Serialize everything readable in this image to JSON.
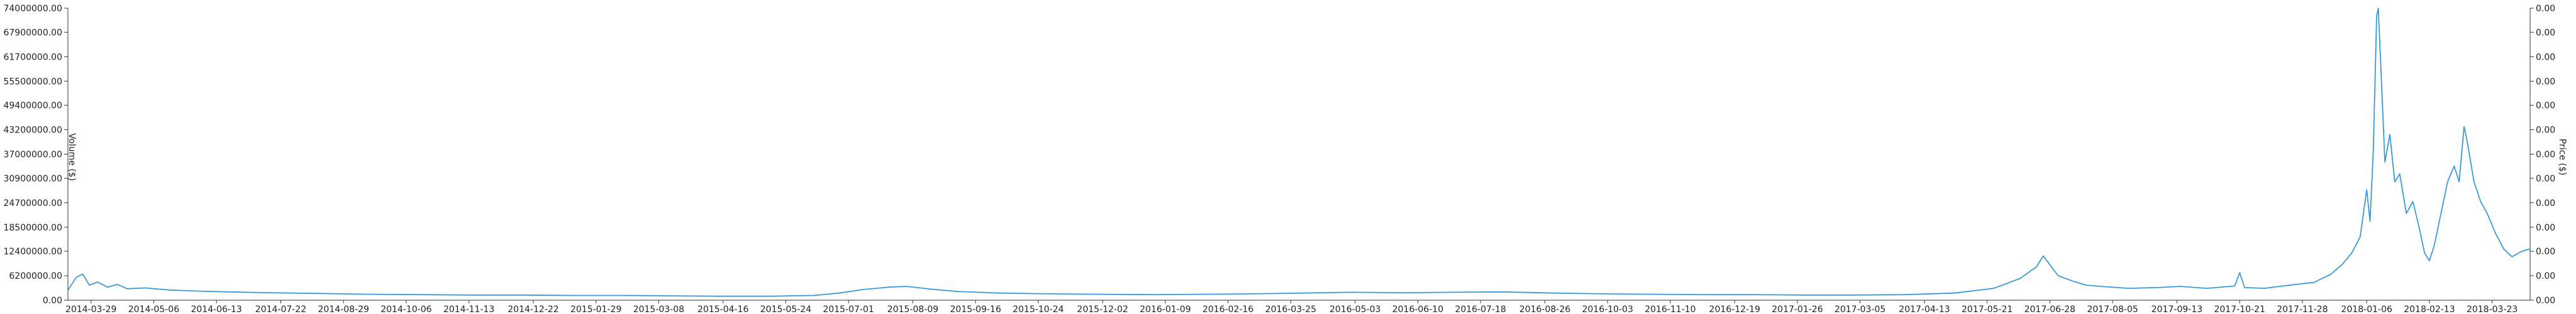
{
  "chart_data": {
    "type": "line",
    "title": "",
    "ylabel_left": "Volume ($)",
    "ylabel_right": "Price ($)",
    "y_left": {
      "min": 0,
      "max": 74000000,
      "ticks": [
        "0.00",
        "6200000.00",
        "12400000.00",
        "18500000.00",
        "24700000.00",
        "30900000.00",
        "37000000.00",
        "43200000.00",
        "49400000.00",
        "55500000.00",
        "61700000.00",
        "67900000.00",
        "74000000.00"
      ],
      "tick_values": [
        0,
        6200000,
        12400000,
        18500000,
        24700000,
        30900000,
        37000000,
        43200000,
        49400000,
        55500000,
        61700000,
        67900000,
        74000000
      ]
    },
    "y_right": {
      "ticks": [
        "0.00",
        "0.00",
        "0.00",
        "0.00",
        "0.00",
        "0.00",
        "0.00",
        "0.00",
        "0.00",
        "0.00",
        "0.00",
        "0.00",
        "0.00"
      ]
    },
    "x_axis": {
      "type": "date",
      "range": [
        "2014-03-15",
        "2018-04-15"
      ],
      "ticks": [
        "2014-03-29",
        "2014-05-06",
        "2014-06-13",
        "2014-07-22",
        "2014-08-29",
        "2014-10-06",
        "2014-11-13",
        "2014-12-22",
        "2015-01-29",
        "2015-03-08",
        "2015-04-16",
        "2015-05-24",
        "2015-07-01",
        "2015-08-09",
        "2015-09-16",
        "2015-10-24",
        "2015-12-02",
        "2016-01-09",
        "2016-02-16",
        "2016-03-25",
        "2016-05-03",
        "2016-06-10",
        "2016-07-18",
        "2016-08-26",
        "2016-10-03",
        "2016-11-10",
        "2016-12-19",
        "2017-01-26",
        "2017-03-05",
        "2017-04-13",
        "2017-05-21",
        "2017-06-28",
        "2017-08-05",
        "2017-09-13",
        "2017-10-21",
        "2017-11-28",
        "2018-01-06",
        "2018-02-13",
        "2018-03-23"
      ]
    },
    "grid": false,
    "legend": "none",
    "series": [
      {
        "color": "#3a9ad9",
        "axis": "left",
        "points": [
          [
            "2014-03-15",
            2500000
          ],
          [
            "2014-03-20",
            5800000
          ],
          [
            "2014-03-24",
            6600000
          ],
          [
            "2014-03-28",
            3800000
          ],
          [
            "2014-04-02",
            4600000
          ],
          [
            "2014-04-08",
            3300000
          ],
          [
            "2014-04-14",
            4000000
          ],
          [
            "2014-04-20",
            2900000
          ],
          [
            "2014-05-01",
            3100000
          ],
          [
            "2014-05-15",
            2600000
          ],
          [
            "2014-06-01",
            2300000
          ],
          [
            "2014-06-20",
            2100000
          ],
          [
            "2014-07-15",
            1900000
          ],
          [
            "2014-08-15",
            1700000
          ],
          [
            "2014-09-15",
            1500000
          ],
          [
            "2014-10-15",
            1400000
          ],
          [
            "2014-11-15",
            1300000
          ],
          [
            "2014-12-15",
            1300000
          ],
          [
            "2015-01-15",
            1200000
          ],
          [
            "2015-02-15",
            1200000
          ],
          [
            "2015-03-15",
            1100000
          ],
          [
            "2015-04-15",
            1000000
          ],
          [
            "2015-05-15",
            1000000
          ],
          [
            "2015-06-10",
            1200000
          ],
          [
            "2015-06-25",
            1800000
          ],
          [
            "2015-07-10",
            2700000
          ],
          [
            "2015-07-25",
            3300000
          ],
          [
            "2015-08-05",
            3500000
          ],
          [
            "2015-08-20",
            2800000
          ],
          [
            "2015-09-05",
            2200000
          ],
          [
            "2015-10-01",
            1800000
          ],
          [
            "2015-11-01",
            1600000
          ],
          [
            "2015-12-01",
            1500000
          ],
          [
            "2016-01-01",
            1400000
          ],
          [
            "2016-02-01",
            1500000
          ],
          [
            "2016-03-01",
            1600000
          ],
          [
            "2016-04-01",
            1800000
          ],
          [
            "2016-05-01",
            2000000
          ],
          [
            "2016-06-01",
            1900000
          ],
          [
            "2016-07-01",
            2000000
          ],
          [
            "2016-08-01",
            2100000
          ],
          [
            "2016-09-01",
            1800000
          ],
          [
            "2016-10-01",
            1600000
          ],
          [
            "2016-11-01",
            1500000
          ],
          [
            "2016-12-01",
            1400000
          ],
          [
            "2017-01-01",
            1400000
          ],
          [
            "2017-02-01",
            1300000
          ],
          [
            "2017-03-01",
            1300000
          ],
          [
            "2017-04-01",
            1400000
          ],
          [
            "2017-05-01",
            1800000
          ],
          [
            "2017-05-25",
            3000000
          ],
          [
            "2017-06-10",
            5500000
          ],
          [
            "2017-06-20",
            8500000
          ],
          [
            "2017-06-24",
            11200000
          ],
          [
            "2017-06-28",
            9000000
          ],
          [
            "2017-07-03",
            6200000
          ],
          [
            "2017-07-12",
            4800000
          ],
          [
            "2017-07-20",
            3800000
          ],
          [
            "2017-08-01",
            3400000
          ],
          [
            "2017-08-15",
            3000000
          ],
          [
            "2017-09-01",
            3200000
          ],
          [
            "2017-09-15",
            3500000
          ],
          [
            "2017-10-01",
            3000000
          ],
          [
            "2017-10-18",
            3600000
          ],
          [
            "2017-10-21",
            7000000
          ],
          [
            "2017-10-24",
            3200000
          ],
          [
            "2017-11-05",
            3000000
          ],
          [
            "2017-11-20",
            3800000
          ],
          [
            "2017-12-05",
            4500000
          ],
          [
            "2017-12-15",
            6500000
          ],
          [
            "2017-12-22",
            9000000
          ],
          [
            "2017-12-28",
            12000000
          ],
          [
            "2018-01-02",
            16000000
          ],
          [
            "2018-01-06",
            28000000
          ],
          [
            "2018-01-08",
            20000000
          ],
          [
            "2018-01-10",
            38000000
          ],
          [
            "2018-01-12",
            72000000
          ],
          [
            "2018-01-13",
            74000000
          ],
          [
            "2018-01-15",
            55000000
          ],
          [
            "2018-01-17",
            35000000
          ],
          [
            "2018-01-20",
            42000000
          ],
          [
            "2018-01-23",
            30000000
          ],
          [
            "2018-01-26",
            32000000
          ],
          [
            "2018-01-30",
            22000000
          ],
          [
            "2018-02-03",
            25000000
          ],
          [
            "2018-02-07",
            18000000
          ],
          [
            "2018-02-10",
            12000000
          ],
          [
            "2018-02-13",
            10000000
          ],
          [
            "2018-02-16",
            14000000
          ],
          [
            "2018-02-20",
            22000000
          ],
          [
            "2018-02-24",
            30000000
          ],
          [
            "2018-02-28",
            34000000
          ],
          [
            "2018-03-03",
            30000000
          ],
          [
            "2018-03-06",
            44000000
          ],
          [
            "2018-03-08",
            40000000
          ],
          [
            "2018-03-12",
            30000000
          ],
          [
            "2018-03-16",
            25000000
          ],
          [
            "2018-03-20",
            22000000
          ],
          [
            "2018-03-25",
            17000000
          ],
          [
            "2018-03-30",
            13000000
          ],
          [
            "2018-04-04",
            11000000
          ],
          [
            "2018-04-10",
            12400000
          ],
          [
            "2018-04-15",
            13000000
          ]
        ]
      }
    ]
  }
}
